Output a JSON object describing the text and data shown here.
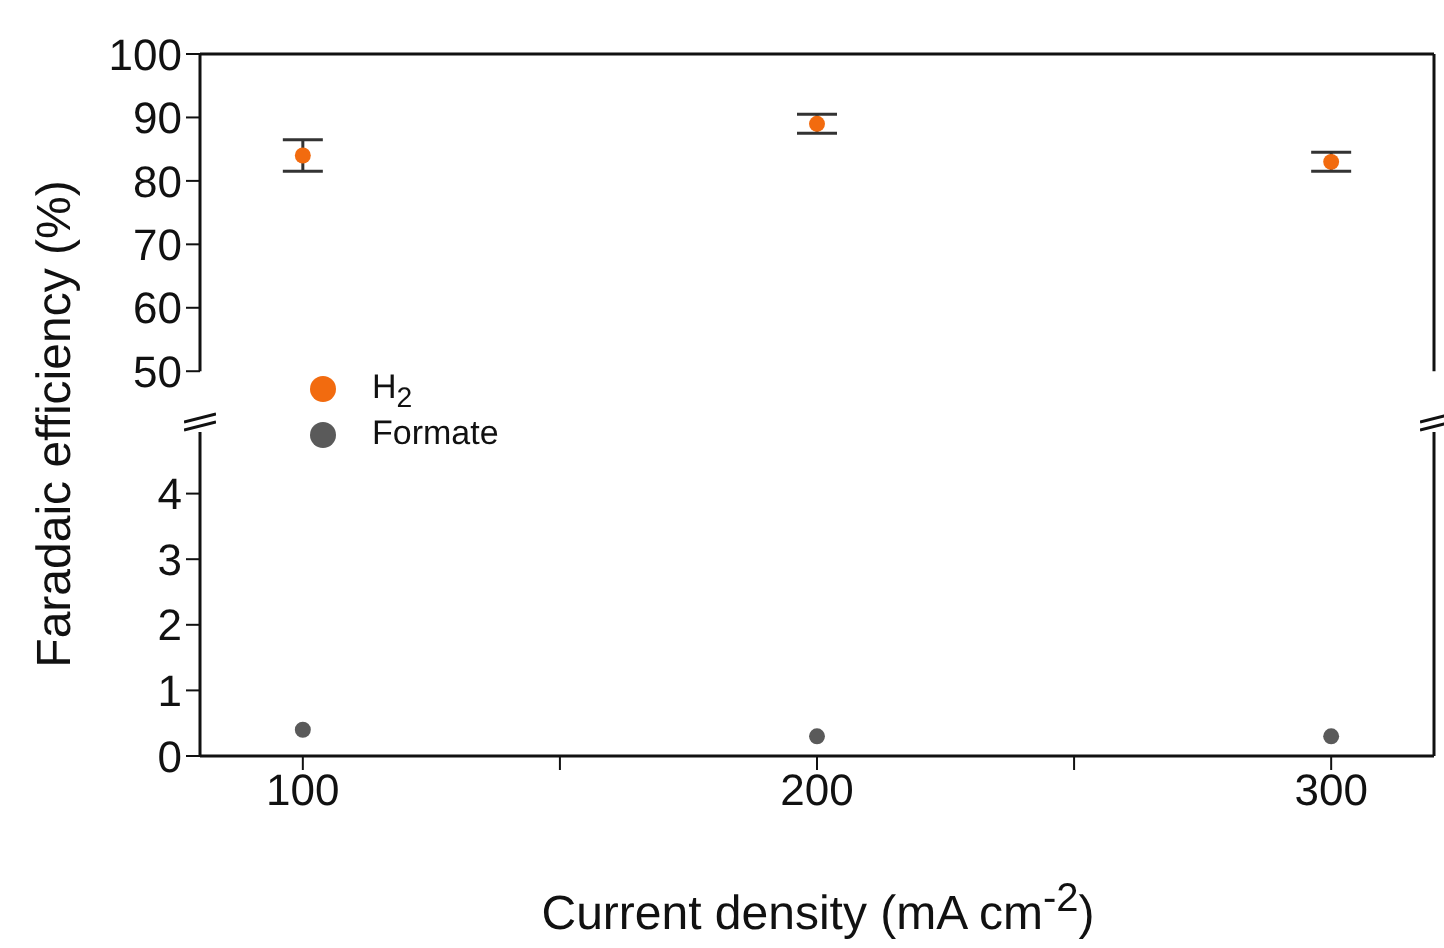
{
  "chart_data": [
    {
      "type": "scatter",
      "ylabel": "Faradaic efficiency (%)",
      "x": [
        100,
        200,
        300
      ],
      "xlim": [
        80,
        320
      ],
      "ylim": [
        50,
        100
      ],
      "yticks": [
        50,
        60,
        70,
        80,
        90,
        100
      ],
      "tick_labels": "y",
      "marker": "circle",
      "grid": false,
      "legend": "bottom left",
      "series": [
        {
          "name": "H$_{2}$",
          "color": "#f26b0f",
          "values": [
            84,
            89,
            83
          ],
          "errors": [
            2.5,
            1.5,
            1.5
          ]
        }
      ]
    },
    {
      "type": "scatter",
      "xlabel": "Current density (mA cm$^{-2}$)",
      "x": [
        100,
        200,
        300
      ],
      "xlim": [
        80,
        320
      ],
      "xticks": [
        100,
        {
          "value": 150,
          "label": null
        },
        200,
        {
          "value": 250,
          "label": null
        },
        300
      ],
      "ylim": [
        0,
        5
      ],
      "yticks": [
        0,
        1,
        2,
        3,
        4
      ],
      "marker": "circle",
      "grid": false,
      "legend": "top left",
      "series": [
        {
          "name": "Formate",
          "color": "#5a5a5a",
          "values": [
            0.4,
            0.3,
            0.3
          ]
        }
      ]
    }
  ]
}
